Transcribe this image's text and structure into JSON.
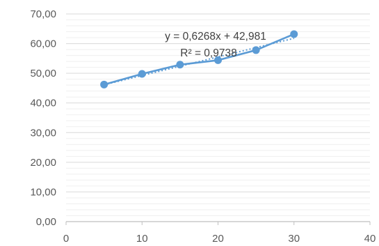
{
  "chart_data": {
    "type": "scatter",
    "title": "",
    "xlabel": "",
    "ylabel": "",
    "xlim": [
      0,
      40
    ],
    "ylim": [
      0,
      70
    ],
    "x_ticks": [
      "0",
      "10",
      "20",
      "30",
      "40"
    ],
    "y_ticks": [
      "0,00",
      "10,00",
      "20,00",
      "30,00",
      "40,00",
      "50,00",
      "60,00",
      "70,00"
    ],
    "grid": "horizontal",
    "legend": "none",
    "series": [
      {
        "x": [
          5,
          10,
          15,
          20,
          25,
          30
        ],
        "y": [
          46.2,
          49.8,
          52.9,
          54.4,
          57.8,
          63.2
        ],
        "style": "line-with-markers",
        "color": "#5b9bd5"
      }
    ],
    "trendline": {
      "type": "linear",
      "slope": 0.6268,
      "intercept": 42.981,
      "equation": "y = 0,6268x + 42,981",
      "r_squared": "R² = 0,9738",
      "style": "dotted",
      "color": "#5b9bd5"
    }
  }
}
